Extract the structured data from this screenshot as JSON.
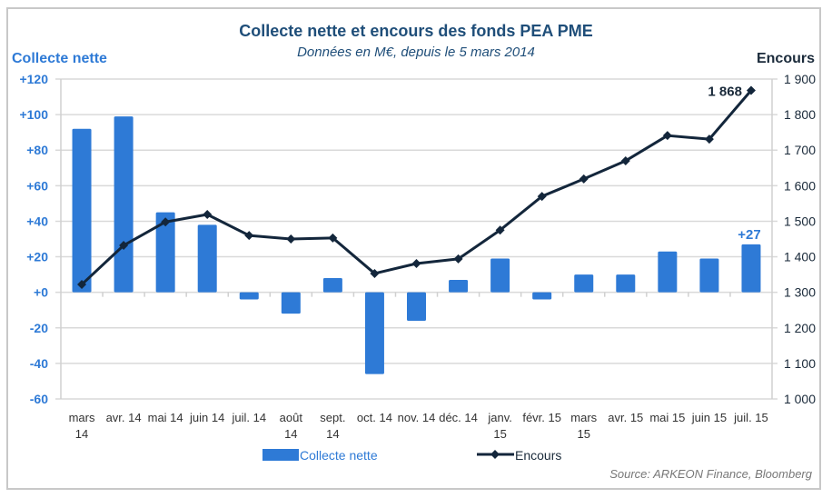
{
  "chart_data": {
    "type": "bar+line",
    "title": "Collecte nette et encours des fonds PEA PME",
    "subtitle": "Données en M€, depuis le 5 mars 2014",
    "ylabel_left": "Collecte nette",
    "ylabel_right": "Encours",
    "source": "Source: ARKEON Finance, Bloomberg",
    "categories": [
      [
        "mars",
        "14"
      ],
      [
        "avr. 14"
      ],
      [
        "mai 14"
      ],
      [
        "juin 14"
      ],
      [
        "juil. 14"
      ],
      [
        "août",
        "14"
      ],
      [
        "sept.",
        "14"
      ],
      [
        "oct. 14"
      ],
      [
        "nov. 14"
      ],
      [
        "déc. 14"
      ],
      [
        "janv.",
        "15"
      ],
      [
        "févr. 15"
      ],
      [
        "mars",
        "15"
      ],
      [
        "avr. 15"
      ],
      [
        "mai 15"
      ],
      [
        "juin 15"
      ],
      [
        "juil. 15"
      ]
    ],
    "series": [
      {
        "name": "Collecte nette",
        "type": "bar",
        "axis": "left",
        "color": "#2e7ad6",
        "values": [
          92,
          99,
          45,
          38,
          -4,
          -12,
          8,
          -46,
          -16,
          7,
          19,
          -4,
          10,
          10,
          23,
          19,
          27
        ]
      },
      {
        "name": "Encours",
        "type": "line",
        "axis": "right",
        "color": "#13263b",
        "values": [
          1322,
          1432,
          1498,
          1519,
          1460,
          1450,
          1453,
          1353,
          1381,
          1394,
          1475,
          1570,
          1619,
          1670,
          1741,
          1731,
          1868
        ]
      }
    ],
    "y_left": {
      "min": -60,
      "max": 120,
      "step": 20,
      "tick_labels": [
        "-60",
        "-40",
        "-20",
        "+0",
        "+20",
        "+40",
        "+60",
        "+80",
        "+100",
        "+120"
      ]
    },
    "y_right": {
      "min": 1000,
      "max": 1900,
      "step": 100,
      "tick_labels": [
        "1 000",
        "1 100",
        "1 200",
        "1 300",
        "1 400",
        "1 500",
        "1 600",
        "1 700",
        "1 800",
        "1 900"
      ]
    },
    "annotations": [
      {
        "series": "Encours",
        "index": 16,
        "text": "1 868"
      },
      {
        "series": "Collecte nette",
        "index": 16,
        "text": "+27"
      }
    ],
    "grid": true,
    "legend": {
      "position": "bottom",
      "items": [
        "Collecte nette",
        "Encours"
      ]
    }
  }
}
